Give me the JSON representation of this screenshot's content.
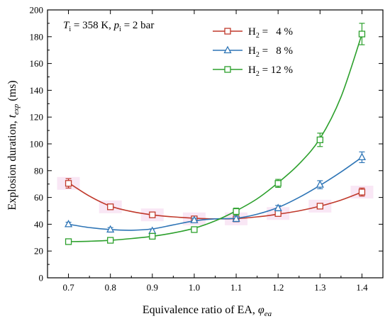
{
  "chart_data": {
    "type": "line",
    "xlabel": "Equivalence ratio of EA, ",
    "xlabel_symbol": "φ",
    "xlabel_sub": "ea",
    "ylabel": "Explosion duration, ",
    "ylabel_symbol": "t",
    "ylabel_sub": "exp",
    "ylabel_unit": " (ms)",
    "xlim": [
      0.65,
      1.45
    ],
    "ylim": [
      0,
      200
    ],
    "x_ticks": [
      0.7,
      0.8,
      0.9,
      1.0,
      1.1,
      1.2,
      1.3,
      1.4
    ],
    "x_tick_labels": [
      "0.7",
      "0.8",
      "0.9",
      "1.0",
      "1.1",
      "1.2",
      "1.3",
      "1.4"
    ],
    "y_ticks": [
      0,
      20,
      40,
      60,
      80,
      100,
      120,
      140,
      160,
      180,
      200
    ],
    "y_tick_labels": [
      "0",
      "20",
      "40",
      "60",
      "80",
      "100",
      "120",
      "140",
      "160",
      "180",
      "200"
    ],
    "annotation": {
      "t": "T",
      "t_sub": "i",
      "t_val": " = 358 K, ",
      "p": "p",
      "p_sub": "i",
      "p_val": " = 2 bar"
    },
    "legend_position": "top-right",
    "series": [
      {
        "name": "H2 =   4 %",
        "name_parts": [
          "H",
          "2",
          " =   4 %"
        ],
        "color": "#c0392b",
        "marker": "square",
        "x": [
          0.7,
          0.8,
          0.9,
          1.0,
          1.1,
          1.2,
          1.3,
          1.4
        ],
        "y": [
          70.5,
          53,
          47,
          44,
          44,
          48,
          53.5,
          64
        ],
        "err": [
          3.5,
          2,
          2,
          1.5,
          1.5,
          1.5,
          2,
          3
        ],
        "fit": [
          [
            0.7,
            71
          ],
          [
            0.75,
            61
          ],
          [
            0.8,
            53.5
          ],
          [
            0.85,
            49.5
          ],
          [
            0.9,
            47
          ],
          [
            0.95,
            45.5
          ],
          [
            1.0,
            44.5
          ],
          [
            1.05,
            44
          ],
          [
            1.1,
            44.2
          ],
          [
            1.15,
            45.5
          ],
          [
            1.2,
            47.5
          ],
          [
            1.25,
            50
          ],
          [
            1.3,
            53.5
          ],
          [
            1.35,
            58
          ],
          [
            1.4,
            64
          ]
        ]
      },
      {
        "name": "H2 =   8 %",
        "name_parts": [
          "H",
          "2",
          " =   8 %"
        ],
        "color": "#2e75b6",
        "marker": "triangle",
        "x": [
          0.7,
          0.8,
          0.9,
          1.0,
          1.1,
          1.2,
          1.3,
          1.4
        ],
        "y": [
          40,
          36,
          35,
          43,
          44,
          52,
          69.5,
          90
        ],
        "err": [
          1.5,
          1.5,
          1.5,
          1.5,
          2,
          2,
          3,
          4
        ],
        "fit": [
          [
            0.7,
            40
          ],
          [
            0.75,
            37.5
          ],
          [
            0.8,
            36
          ],
          [
            0.85,
            35.5
          ],
          [
            0.9,
            36.5
          ],
          [
            0.95,
            39.5
          ],
          [
            1.0,
            42.5
          ],
          [
            1.05,
            44
          ],
          [
            1.1,
            44.5
          ],
          [
            1.15,
            47.5
          ],
          [
            1.2,
            52.5
          ],
          [
            1.25,
            60
          ],
          [
            1.3,
            69
          ],
          [
            1.35,
            79
          ],
          [
            1.4,
            90
          ]
        ]
      },
      {
        "name": "H2 = 12 %",
        "name_parts": [
          "H",
          "2",
          " = 12 %"
        ],
        "color": "#2ca02c",
        "marker": "square",
        "x": [
          0.7,
          0.8,
          0.9,
          1.0,
          1.1,
          1.2,
          1.3,
          1.4
        ],
        "y": [
          27,
          28,
          31,
          36,
          49.5,
          70.5,
          103,
          182
        ],
        "err": [
          1.5,
          1.5,
          2,
          2,
          2.5,
          3,
          5,
          8
        ],
        "fit": [
          [
            0.7,
            27
          ],
          [
            0.75,
            27.3
          ],
          [
            0.8,
            28
          ],
          [
            0.85,
            29.3
          ],
          [
            0.9,
            31
          ],
          [
            0.95,
            33.5
          ],
          [
            1.0,
            37
          ],
          [
            1.05,
            42.5
          ],
          [
            1.1,
            50
          ],
          [
            1.15,
            59
          ],
          [
            1.2,
            71
          ],
          [
            1.25,
            85
          ],
          [
            1.3,
            104
          ],
          [
            1.35,
            135
          ],
          [
            1.4,
            182
          ]
        ]
      }
    ]
  }
}
